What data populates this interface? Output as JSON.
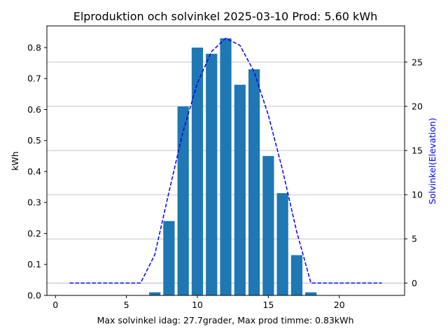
{
  "chart_data": {
    "type": "bar",
    "title": "Elproduktion och solvinkel 2025-03-10 Prod: 5.60 kWh",
    "xlabel": "Max solvinkel idag: 27.7grader, Max prod timme: 0.83kWh",
    "ylabel": "kWh",
    "y2label": "Solvinkel(Elevation)",
    "xlim": [
      -0.6,
      24.6
    ],
    "ylim": [
      0,
      0.87
    ],
    "y2lim": [
      -1.4,
      29.1
    ],
    "xticks": [
      0,
      5,
      10,
      15,
      20
    ],
    "yticks": [
      0.0,
      0.1,
      0.2,
      0.3,
      0.4,
      0.5,
      0.6,
      0.7,
      0.8
    ],
    "y2ticks": [
      0,
      5,
      10,
      15,
      20,
      25
    ],
    "grid": "horizontal (right axis)",
    "bar_color": "#1f77b4",
    "line_color": "#0000ff",
    "bars": {
      "x": [
        7,
        8,
        9,
        10,
        11,
        12,
        13,
        14,
        15,
        16,
        17,
        18
      ],
      "values": [
        0.01,
        0.24,
        0.61,
        0.8,
        0.78,
        0.83,
        0.68,
        0.73,
        0.45,
        0.33,
        0.13,
        0.01
      ]
    },
    "line": {
      "style": "dashed",
      "axis": "right",
      "x": [
        1,
        2,
        3,
        4,
        5,
        6,
        7,
        8,
        9,
        10,
        11,
        12,
        13,
        14,
        15,
        16,
        17,
        18,
        19,
        20,
        21,
        22,
        23
      ],
      "values": [
        0,
        0,
        0,
        0,
        0,
        0,
        3.2,
        10.3,
        17.2,
        22.6,
        26.2,
        27.7,
        26.9,
        23.9,
        19.0,
        12.8,
        5.8,
        0,
        0,
        0,
        0,
        0,
        0
      ]
    }
  }
}
